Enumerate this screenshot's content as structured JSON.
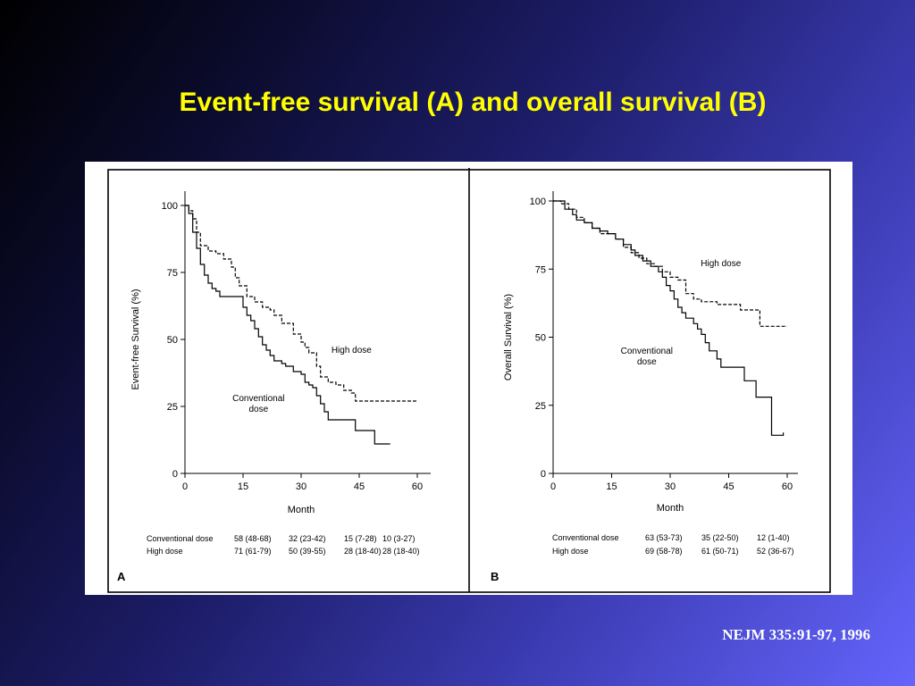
{
  "slide": {
    "title": "Event-free survival (A) and overall survival (B)",
    "citation": "NEJM 335:91-97, 1996"
  },
  "chart_data": [
    {
      "type": "line",
      "panel_label": "A",
      "ylabel": "Event-free Survival (%)",
      "xlabel": "Month",
      "xlim": [
        0,
        60
      ],
      "ylim": [
        0,
        100
      ],
      "xticks": [
        0,
        15,
        30,
        45,
        60
      ],
      "yticks": [
        0,
        25,
        50,
        75,
        100
      ],
      "series": [
        {
          "name": "Conventional dose",
          "style": "solid",
          "points": [
            [
              0,
              100
            ],
            [
              1,
              97
            ],
            [
              2,
              90
            ],
            [
              3,
              84
            ],
            [
              4,
              78
            ],
            [
              5,
              74
            ],
            [
              6,
              71
            ],
            [
              7,
              69
            ],
            [
              8,
              68
            ],
            [
              9,
              66
            ],
            [
              14,
              66
            ],
            [
              15,
              62
            ],
            [
              16,
              59
            ],
            [
              17,
              57
            ],
            [
              18,
              54
            ],
            [
              19,
              51
            ],
            [
              20,
              48
            ],
            [
              21,
              46
            ],
            [
              22,
              44
            ],
            [
              23,
              42
            ],
            [
              25,
              41
            ],
            [
              26,
              40
            ],
            [
              28,
              38
            ],
            [
              30,
              37
            ],
            [
              31,
              34
            ],
            [
              32,
              33
            ],
            [
              33,
              32
            ],
            [
              34,
              29
            ],
            [
              35,
              26
            ],
            [
              36,
              23
            ],
            [
              37,
              20
            ],
            [
              43,
              20
            ],
            [
              44,
              16
            ],
            [
              49,
              16
            ],
            [
              49,
              11
            ],
            [
              53,
              11
            ]
          ]
        },
        {
          "name": "High dose",
          "style": "dashed",
          "points": [
            [
              0,
              100
            ],
            [
              1,
              98
            ],
            [
              2,
              95
            ],
            [
              3,
              90
            ],
            [
              4,
              85
            ],
            [
              6,
              83
            ],
            [
              8,
              82
            ],
            [
              10,
              80
            ],
            [
              12,
              77
            ],
            [
              13,
              73
            ],
            [
              14,
              70
            ],
            [
              16,
              66
            ],
            [
              18,
              64
            ],
            [
              20,
              62
            ],
            [
              22,
              61
            ],
            [
              23,
              59
            ],
            [
              25,
              56
            ],
            [
              28,
              52
            ],
            [
              30,
              49
            ],
            [
              31,
              47
            ],
            [
              32,
              45
            ],
            [
              34,
              40
            ],
            [
              35,
              36
            ],
            [
              37,
              34
            ],
            [
              39,
              33
            ],
            [
              41,
              31
            ],
            [
              43,
              30
            ],
            [
              44,
              27
            ],
            [
              60,
              27
            ]
          ]
        }
      ],
      "annotations": [
        {
          "text": "High dose",
          "x": 43,
          "y": 45
        },
        {
          "text": "Conventional",
          "x": 19,
          "y": 27
        },
        {
          "text": "dose",
          "x": 19,
          "y": 23
        }
      ],
      "table": {
        "rows": [
          {
            "label": "Conventional dose",
            "values": [
              "58 (48-68)",
              "32 (23-42)",
              "15 (7-28)",
              "10 (3-27)"
            ]
          },
          {
            "label": "High dose",
            "values": [
              "71 (61-79)",
              "50 (39-55)",
              "28 (18-40)",
              "28 (18-40)"
            ]
          }
        ]
      }
    },
    {
      "type": "line",
      "panel_label": "B",
      "ylabel": "Overall Survival (%)",
      "xlabel": "Month",
      "xlim": [
        0,
        60
      ],
      "ylim": [
        0,
        100
      ],
      "xticks": [
        0,
        15,
        30,
        45,
        60
      ],
      "yticks": [
        0,
        25,
        50,
        75,
        100
      ],
      "series": [
        {
          "name": "Conventional dose",
          "style": "solid",
          "points": [
            [
              0,
              100
            ],
            [
              3,
              97
            ],
            [
              5,
              95
            ],
            [
              6,
              93
            ],
            [
              8,
              92
            ],
            [
              10,
              90
            ],
            [
              12,
              89
            ],
            [
              14,
              88
            ],
            [
              16,
              86
            ],
            [
              18,
              84
            ],
            [
              20,
              82
            ],
            [
              21,
              80
            ],
            [
              23,
              78
            ],
            [
              25,
              76
            ],
            [
              27,
              74
            ],
            [
              28,
              72
            ],
            [
              29,
              69
            ],
            [
              30,
              67
            ],
            [
              31,
              64
            ],
            [
              32,
              61
            ],
            [
              33,
              59
            ],
            [
              34,
              57
            ],
            [
              36,
              55
            ],
            [
              37,
              53
            ],
            [
              38,
              51
            ],
            [
              39,
              48
            ],
            [
              40,
              45
            ],
            [
              42,
              42
            ],
            [
              43,
              39
            ],
            [
              49,
              39
            ],
            [
              49,
              34
            ],
            [
              52,
              34
            ],
            [
              52,
              28
            ],
            [
              56,
              28
            ],
            [
              56,
              14
            ],
            [
              59,
              14
            ],
            [
              59,
              15
            ]
          ]
        },
        {
          "name": "High dose",
          "style": "dashed",
          "points": [
            [
              0,
              100
            ],
            [
              2,
              99
            ],
            [
              4,
              97
            ],
            [
              6,
              94
            ],
            [
              8,
              92
            ],
            [
              10,
              90
            ],
            [
              12,
              88
            ],
            [
              16,
              86
            ],
            [
              18,
              83
            ],
            [
              20,
              81
            ],
            [
              22,
              79
            ],
            [
              24,
              77
            ],
            [
              26,
              76
            ],
            [
              28,
              74
            ],
            [
              30,
              72
            ],
            [
              32,
              71
            ],
            [
              34,
              66
            ],
            [
              36,
              64
            ],
            [
              38,
              63
            ],
            [
              41,
              63
            ],
            [
              42,
              62
            ],
            [
              47,
              62
            ],
            [
              48,
              60
            ],
            [
              52,
              60
            ],
            [
              53,
              54
            ],
            [
              60,
              54
            ]
          ]
        }
      ],
      "annotations": [
        {
          "text": "High dose",
          "x": 43,
          "y": 76
        },
        {
          "text": "Conventional",
          "x": 24,
          "y": 44
        },
        {
          "text": "dose",
          "x": 24,
          "y": 40
        }
      ],
      "table": {
        "rows": [
          {
            "label": "Conventional dose",
            "values": [
              "63 (53-73)",
              "35 (22-50)",
              "12 (1-40)"
            ]
          },
          {
            "label": "High dose",
            "values": [
              "69 (58-78)",
              "61 (50-71)",
              "52 (36-67)"
            ]
          }
        ]
      }
    }
  ]
}
